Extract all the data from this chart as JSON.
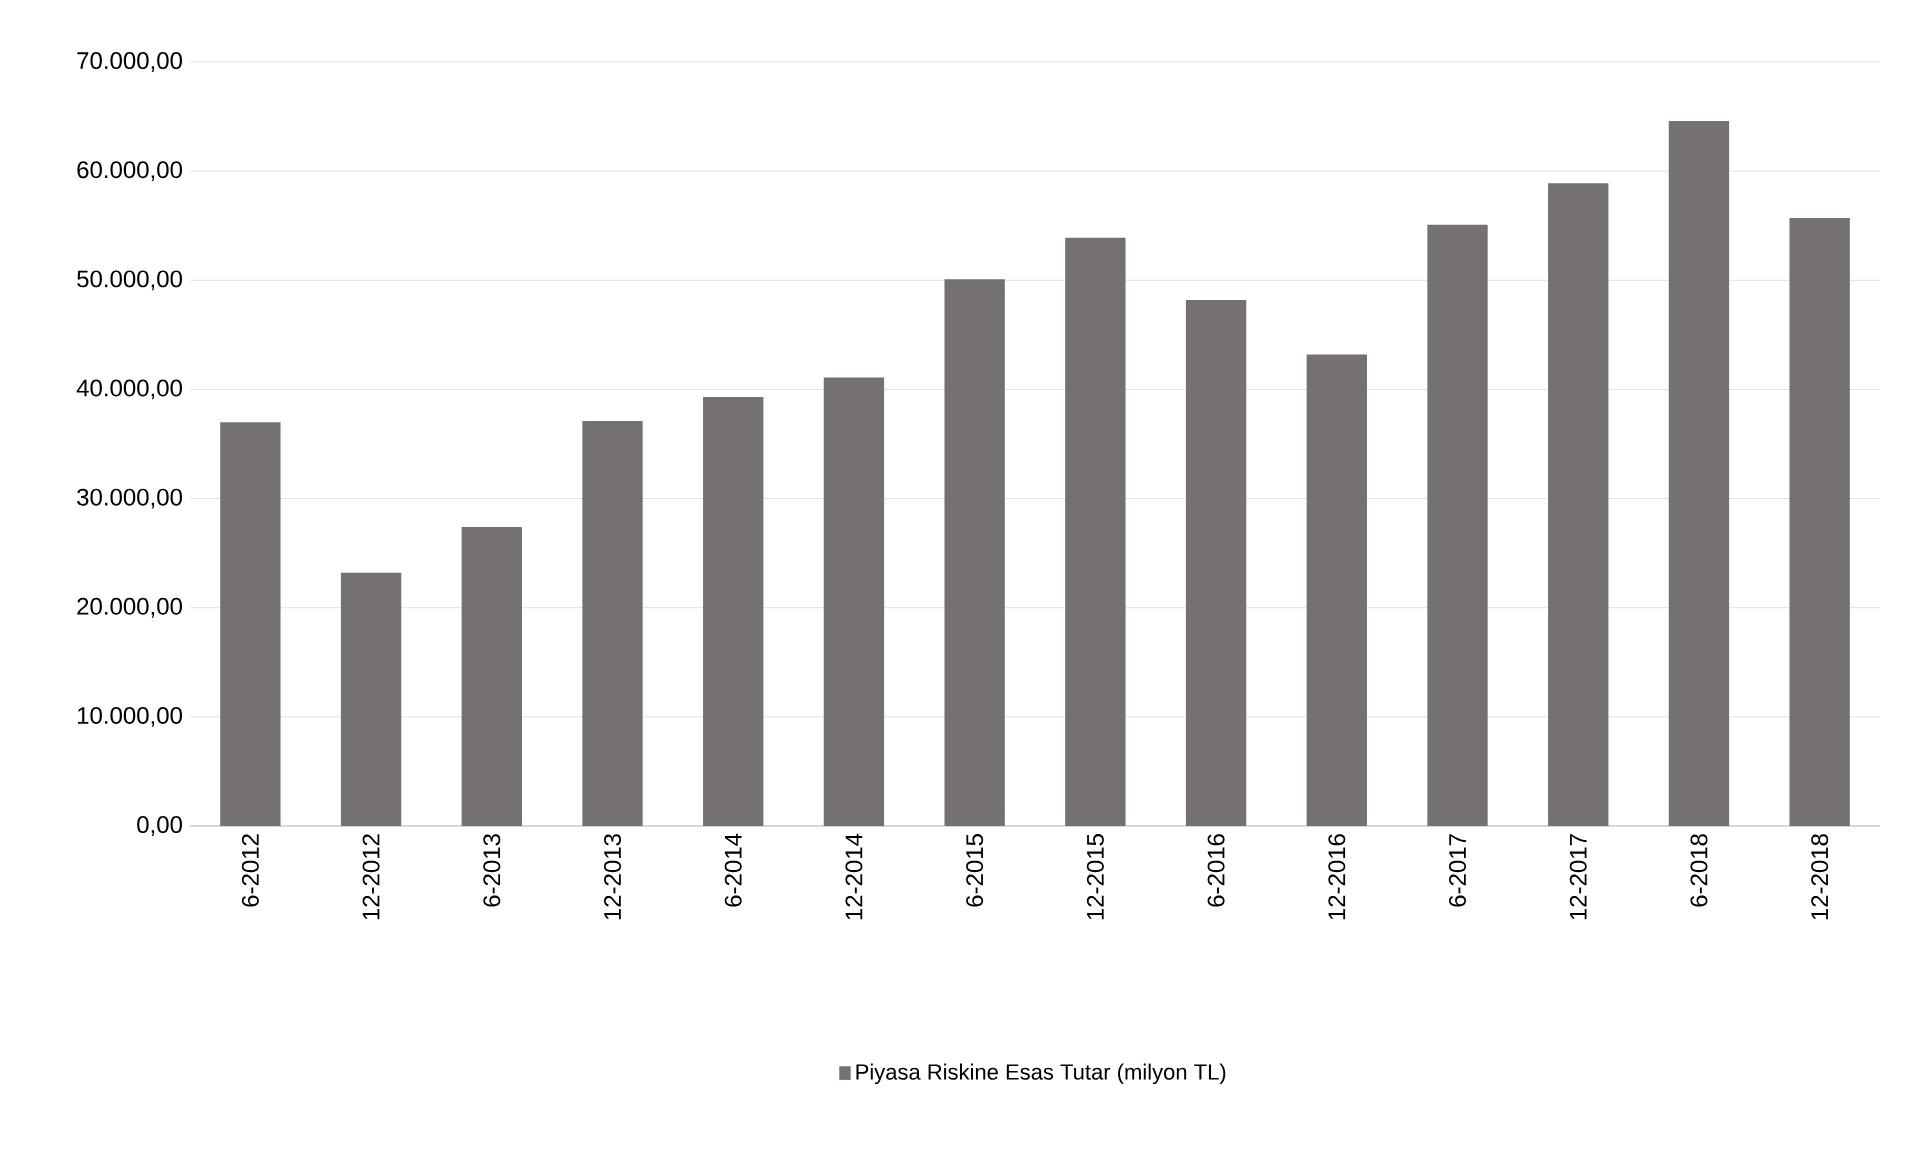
{
  "chart_data": {
    "type": "bar",
    "categories": [
      "6-2012",
      "12-2012",
      "6-2013",
      "12-2013",
      "6-2014",
      "12-2014",
      "6-2015",
      "12-2015",
      "6-2016",
      "12-2016",
      "6-2017",
      "12-2017",
      "6-2018",
      "12-2018"
    ],
    "series": [
      {
        "name": "Piyasa Riskine Esas Tutar (milyon TL)",
        "color": "#767171",
        "values": [
          37000,
          23200,
          27400,
          37100,
          39300,
          41100,
          50100,
          53900,
          48200,
          43200,
          55100,
          58900,
          64600,
          55700
        ]
      }
    ],
    "ylim": [
      0,
      70000
    ],
    "yticks": [
      {
        "value": 0,
        "label": "0,00"
      },
      {
        "value": 10000,
        "label": "10.000,00"
      },
      {
        "value": 20000,
        "label": "20.000,00"
      },
      {
        "value": 30000,
        "label": "30.000,00"
      },
      {
        "value": 40000,
        "label": "40.000,00"
      },
      {
        "value": 50000,
        "label": "50.000,00"
      },
      {
        "value": 60000,
        "label": "60.000,00"
      },
      {
        "value": 70000,
        "label": "70.000,00"
      }
    ],
    "grid": "y",
    "legend": "bottom"
  }
}
